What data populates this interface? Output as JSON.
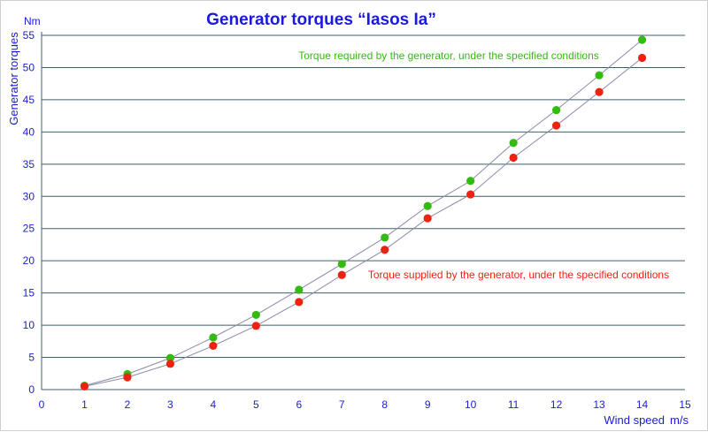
{
  "chart_data": {
    "type": "scatter",
    "title": "Generator torques “Iasos Ia”",
    "ylabel": "Generator torques",
    "yunit": "Nm",
    "xlabel": "Wind speed",
    "xunit": "m/s",
    "xlim": [
      0,
      15
    ],
    "ylim": [
      0,
      55
    ],
    "xticks": [
      "0",
      "1",
      "2",
      "3",
      "4",
      "5",
      "6",
      "7",
      "8",
      "9",
      "10",
      "11",
      "12",
      "13",
      "14",
      "15"
    ],
    "yticks": [
      "0",
      "5",
      "10",
      "15",
      "20",
      "25",
      "30",
      "35",
      "40",
      "45",
      "50",
      "55"
    ],
    "grid": "horizontal",
    "colors": {
      "title": "#1a1adc",
      "axis_text": "#1a1adc",
      "grid": "#3f5f6a",
      "required": "#33bb11",
      "supplied": "#ee2211",
      "line": "#8a8aa8"
    },
    "series": [
      {
        "name": "Torque required by the generator, under the specified conditions",
        "color": "#33bb11",
        "x": [
          1,
          2,
          3,
          4,
          5,
          6,
          7,
          8,
          9,
          10,
          11,
          12,
          13,
          14
        ],
        "values": [
          0.6,
          2.4,
          4.9,
          8.1,
          11.6,
          15.5,
          19.5,
          23.6,
          28.5,
          32.4,
          38.3,
          43.4,
          48.8,
          54.3
        ]
      },
      {
        "name": "Torque supplied by the generator, under the specified conditions",
        "color": "#ee2211",
        "x": [
          1,
          2,
          3,
          4,
          5,
          6,
          7,
          8,
          9,
          10,
          11,
          12,
          13,
          14
        ],
        "values": [
          0.5,
          1.9,
          4.0,
          6.8,
          9.9,
          13.6,
          17.8,
          21.7,
          26.6,
          30.3,
          36.0,
          41.0,
          46.2,
          51.5
        ]
      }
    ]
  }
}
